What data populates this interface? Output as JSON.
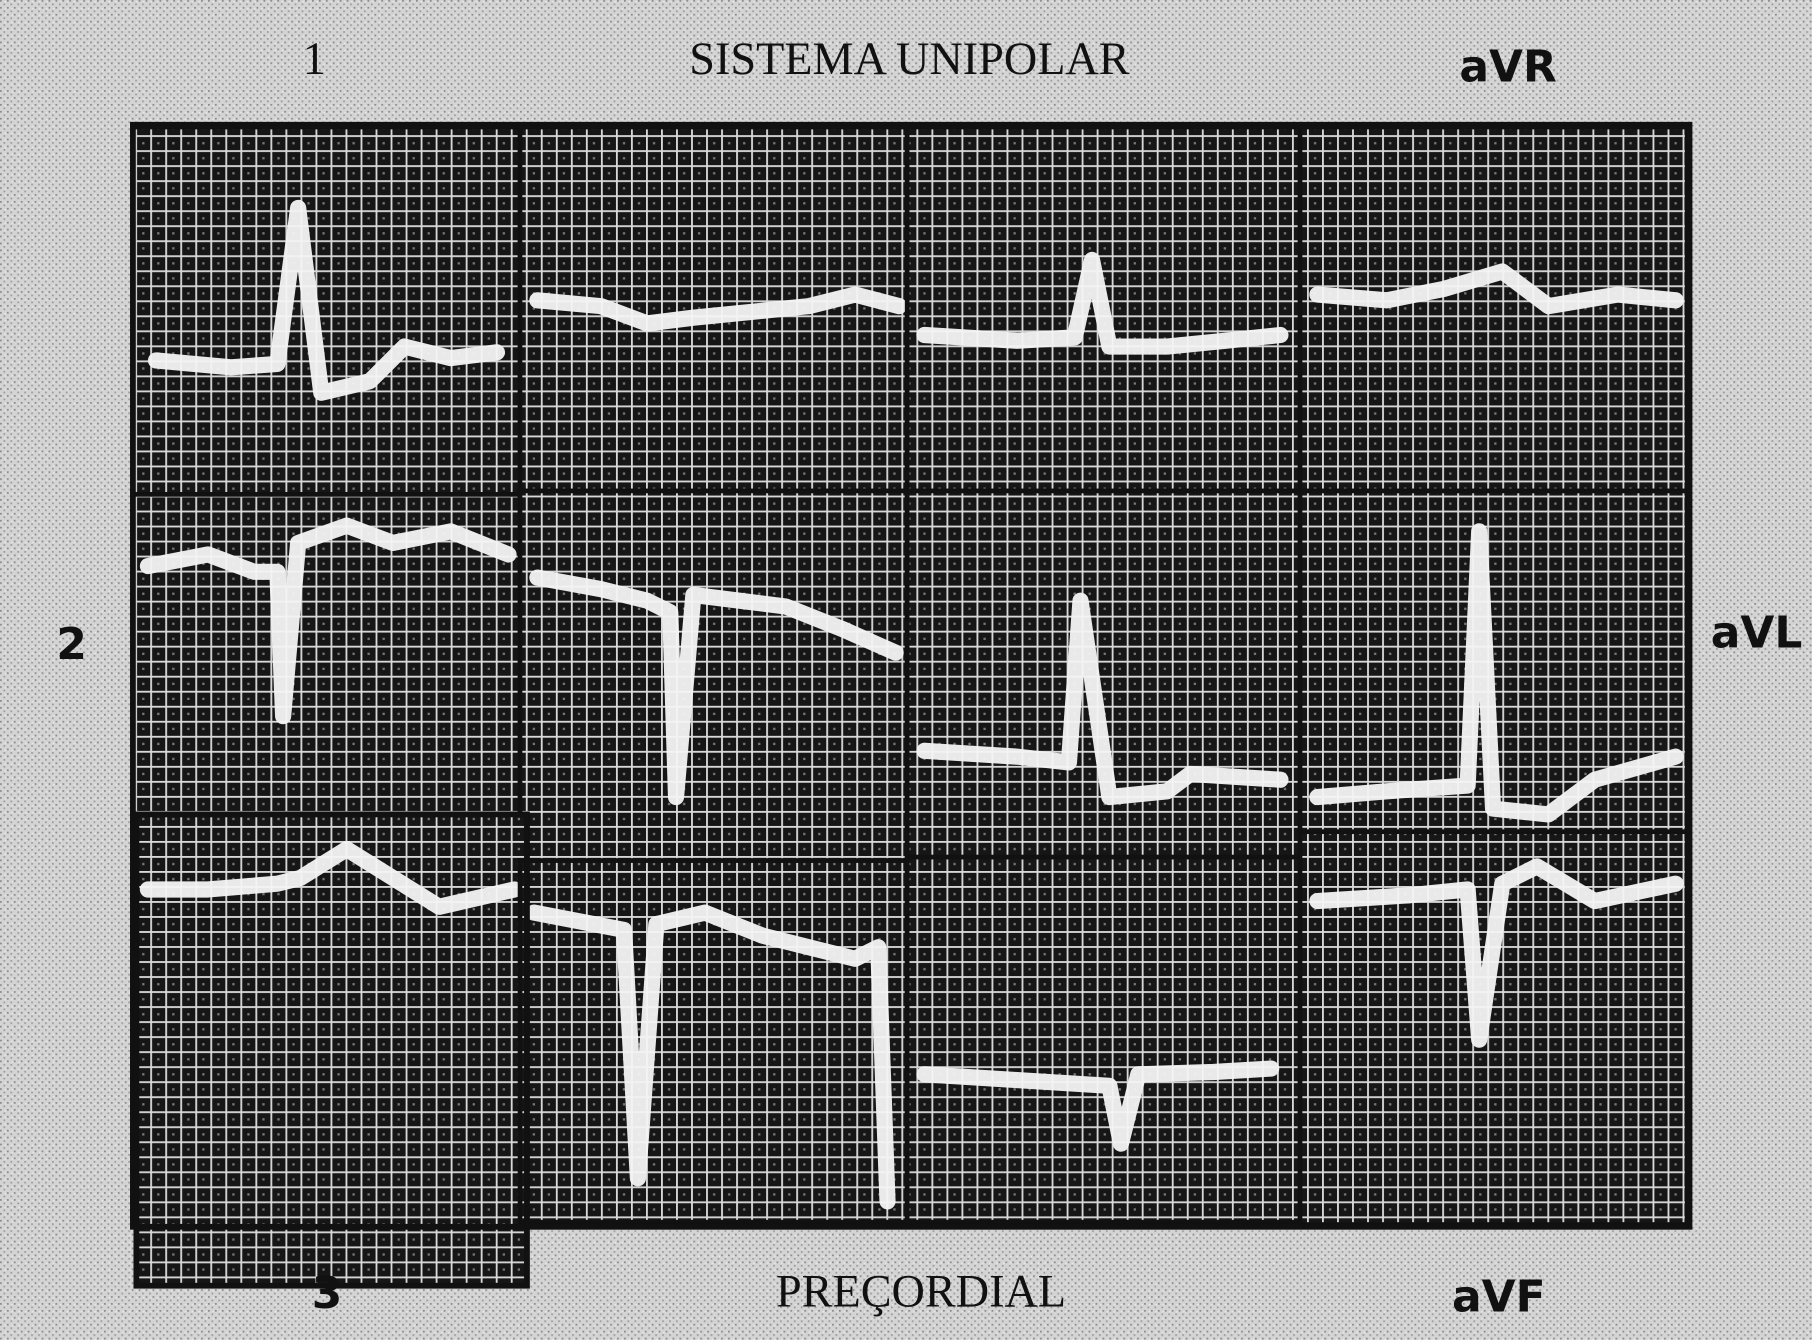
{
  "header": {
    "lead_1": "1",
    "title": "SISTEMA UNIPOLAR",
    "lead_avr": "aVR"
  },
  "side": {
    "lead_2": "2",
    "lead_avl": "aVL"
  },
  "footer": {
    "lead_3": "3",
    "title": "PREÇORDIAL",
    "lead_avf": "aVF"
  }
}
